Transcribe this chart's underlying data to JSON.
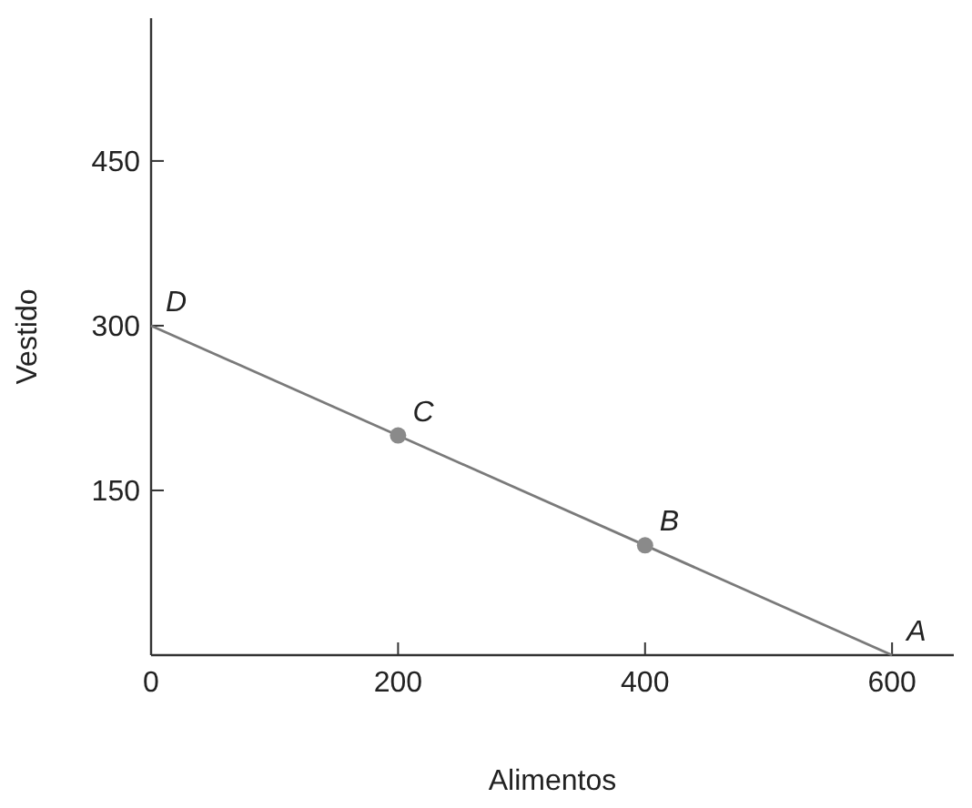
{
  "chart_data": {
    "type": "line",
    "xlabel": "Alimentos",
    "ylabel": "Vestido",
    "xlim": [
      0,
      650
    ],
    "ylim": [
      0,
      580
    ],
    "xticks": [
      0,
      200,
      400,
      600
    ],
    "yticks": [
      {
        "value": 0,
        "label": null
      },
      150,
      300,
      450
    ],
    "series": [
      {
        "color": "#7a7a7a",
        "x": [
          0,
          600
        ],
        "values": [
          300,
          0
        ],
        "marker": "none"
      },
      {
        "type": "scatter",
        "color": "#8a8a8a",
        "x": [
          200,
          400
        ],
        "values": [
          200,
          100
        ],
        "marker": "circle"
      }
    ],
    "annotations": [
      {
        "text": "D",
        "x": 0,
        "y": 300
      },
      {
        "text": "C",
        "x": 200,
        "y": 200
      },
      {
        "text": "B",
        "x": 400,
        "y": 100
      },
      {
        "text": "A",
        "x": 600,
        "y": 0
      }
    ],
    "grid": false
  }
}
